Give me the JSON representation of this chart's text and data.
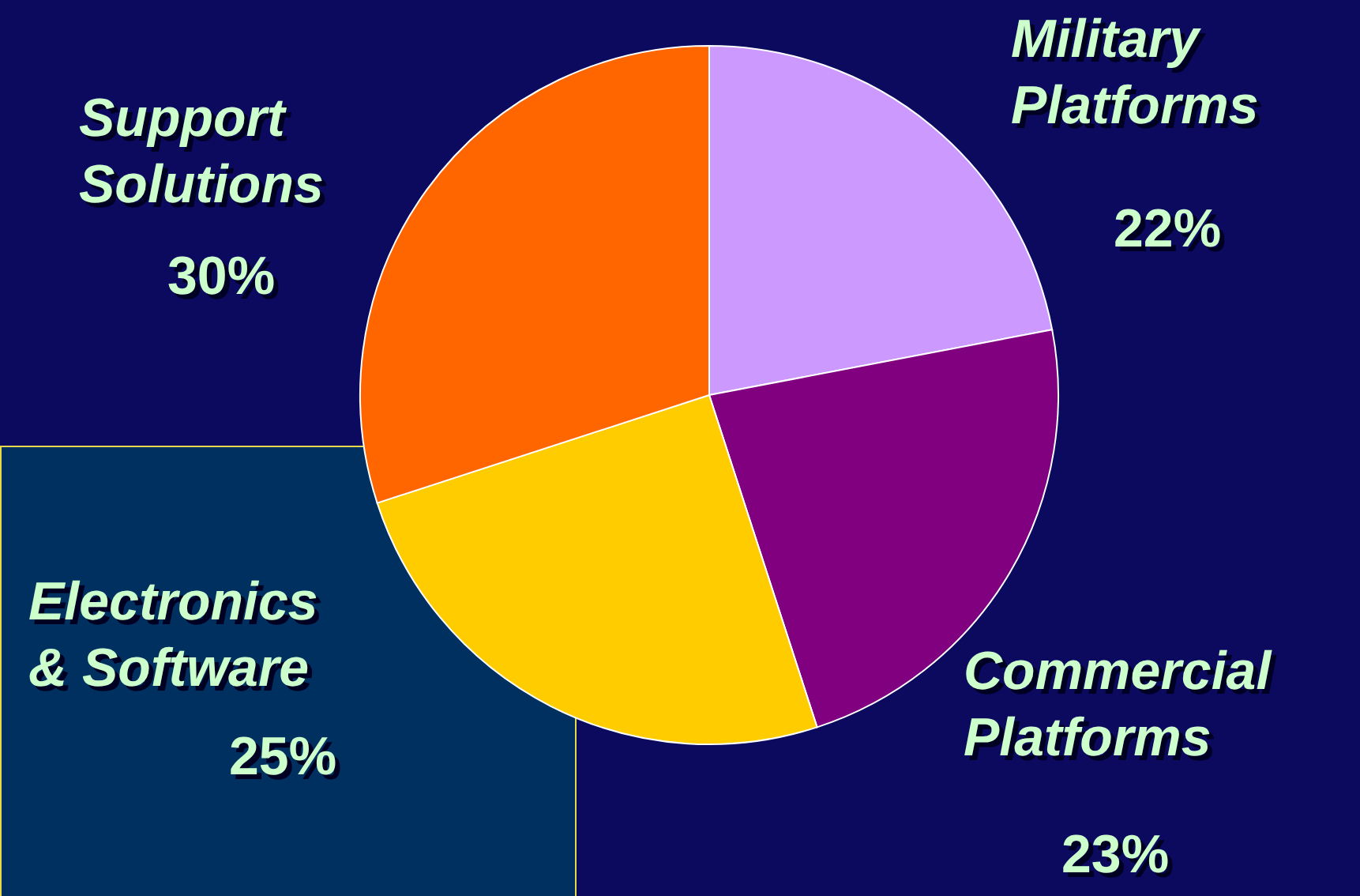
{
  "chart_data": {
    "type": "pie",
    "categories": [
      "Military Platforms",
      "Commercial Platforms",
      "Electronics & Software",
      "Support Solutions"
    ],
    "values": [
      22,
      23,
      25,
      30
    ],
    "value_labels": [
      "22%",
      "23%",
      "25%",
      "30%"
    ],
    "colors": [
      "#cc99ff",
      "#800080",
      "#ffcc00",
      "#ff6600"
    ]
  }
}
